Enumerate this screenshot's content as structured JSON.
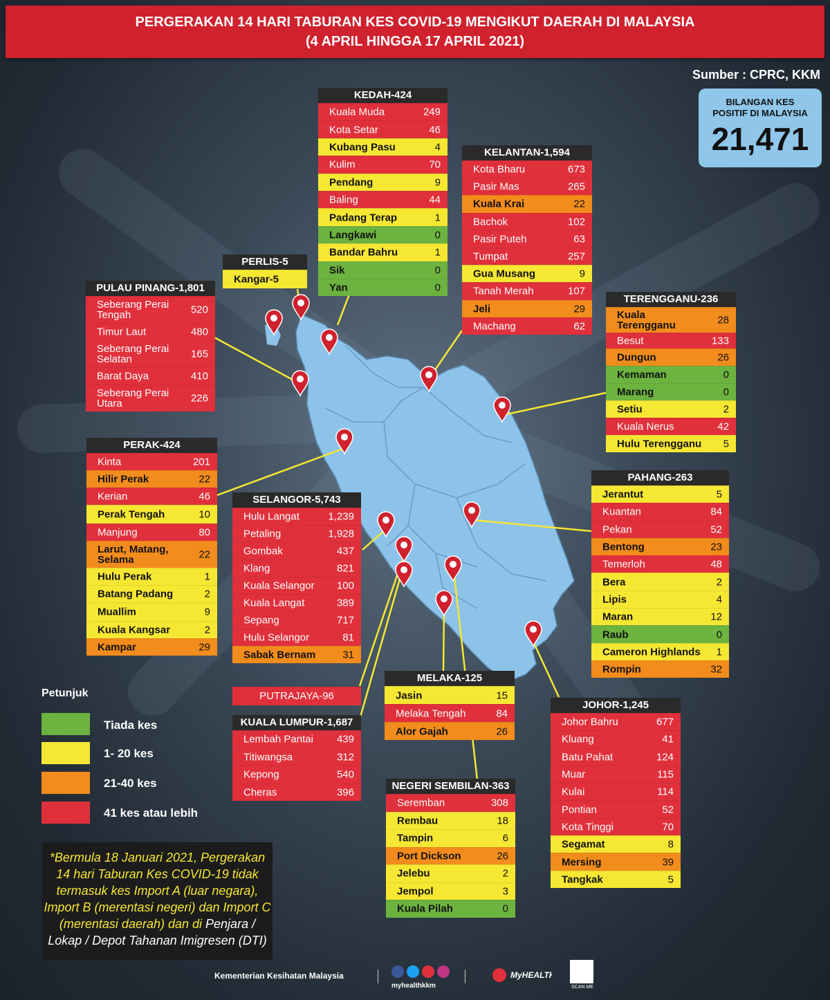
{
  "header": {
    "title_line1": "PERGERAKAN 14 HARI TABURAN KES COVID-19 MENGIKUT DAERAH DI MALAYSIA",
    "title_line2": "(4 APRIL HINGGA 17 APRIL 2021)"
  },
  "source": "Sumber : CPRC, KKM",
  "total": {
    "label_line1": "BILANGAN KES",
    "label_line2": "POSITIF DI MALAYSIA",
    "value": "21,471"
  },
  "colors": {
    "none": "#6db33f",
    "low": "#f6e733",
    "mid": "#f28c1c",
    "high": "#e0303c"
  },
  "kedah": {
    "title": "KEDAH-424",
    "rows": [
      {
        "n": "Kuala Muda",
        "v": "249"
      },
      {
        "n": "Kota Setar",
        "v": "46"
      },
      {
        "n": "Kubang Pasu",
        "v": "4"
      },
      {
        "n": "Kulim",
        "v": "70"
      },
      {
        "n": "Pendang",
        "v": "9"
      },
      {
        "n": "Baling",
        "v": "44"
      },
      {
        "n": "Padang Terap",
        "v": "1"
      },
      {
        "n": "Langkawi",
        "v": "0"
      },
      {
        "n": "Bandar Bahru",
        "v": "1"
      },
      {
        "n": "Sik",
        "v": "0"
      },
      {
        "n": "Yan",
        "v": "0"
      }
    ]
  },
  "kelantan": {
    "title": "KELANTAN-1,594",
    "rows": [
      {
        "n": "Kota Bharu",
        "v": "673"
      },
      {
        "n": "Pasir Mas",
        "v": "265"
      },
      {
        "n": "Kuala Krai",
        "v": "22"
      },
      {
        "n": "Bachok",
        "v": "102"
      },
      {
        "n": "Pasir Puteh",
        "v": "63"
      },
      {
        "n": "Tumpat",
        "v": "257"
      },
      {
        "n": "Gua Musang",
        "v": "9"
      },
      {
        "n": "Tanah Merah",
        "v": "107"
      },
      {
        "n": "Jeli",
        "v": "29"
      },
      {
        "n": "Machang",
        "v": "62"
      }
    ]
  },
  "perlis": {
    "title": "PERLIS-5",
    "rows": [
      {
        "n": "Kangar-5",
        "v": ""
      }
    ]
  },
  "pinang": {
    "title": "PULAU PINANG-1,801",
    "rows": [
      {
        "n": "Seberang Perai Tengah",
        "v": "520"
      },
      {
        "n": "Timur Laut",
        "v": "480"
      },
      {
        "n": "Seberang Perai Selatan",
        "v": "165"
      },
      {
        "n": "Barat Daya",
        "v": "410"
      },
      {
        "n": "Seberang Perai Utara",
        "v": "226"
      }
    ]
  },
  "terengganu": {
    "title": "TERENGGANU-236",
    "rows": [
      {
        "n": "Kuala Terengganu",
        "v": "28"
      },
      {
        "n": "Besut",
        "v": "133"
      },
      {
        "n": "Dungun",
        "v": "26"
      },
      {
        "n": "Kemaman",
        "v": "0"
      },
      {
        "n": "Marang",
        "v": "0"
      },
      {
        "n": "Setiu",
        "v": "2"
      },
      {
        "n": "Kuala Nerus",
        "v": "42"
      },
      {
        "n": "Hulu Terengganu",
        "v": "5"
      }
    ]
  },
  "perak": {
    "title": "PERAK-424",
    "rows": [
      {
        "n": "Kinta",
        "v": "201"
      },
      {
        "n": "Hilir Perak",
        "v": "22"
      },
      {
        "n": "Kerian",
        "v": "46"
      },
      {
        "n": "Perak Tengah",
        "v": "10"
      },
      {
        "n": "Manjung",
        "v": "80"
      },
      {
        "n": "Larut, Matang, Selama",
        "v": "22"
      },
      {
        "n": "Hulu Perak",
        "v": "1"
      },
      {
        "n": "Batang Padang",
        "v": "2"
      },
      {
        "n": "Muallim",
        "v": "9"
      },
      {
        "n": "Kuala Kangsar",
        "v": "2"
      },
      {
        "n": "Kampar",
        "v": "29"
      }
    ]
  },
  "selangor": {
    "title": "SELANGOR-5,743",
    "rows": [
      {
        "n": "Hulu Langat",
        "v": "1,239"
      },
      {
        "n": "Petaling",
        "v": "1,928"
      },
      {
        "n": "Gombak",
        "v": "437"
      },
      {
        "n": "Klang",
        "v": "821"
      },
      {
        "n": "Kuala Selangor",
        "v": "100"
      },
      {
        "n": "Kuala Langat",
        "v": "389"
      },
      {
        "n": "Sepang",
        "v": "717"
      },
      {
        "n": "Hulu Selangor",
        "v": "81"
      },
      {
        "n": "Sabak Bernam",
        "v": "31"
      }
    ]
  },
  "pahang": {
    "title": "PAHANG-263",
    "rows": [
      {
        "n": "Jerantut",
        "v": "5"
      },
      {
        "n": "Kuantan",
        "v": "84"
      },
      {
        "n": "Pekan",
        "v": "52"
      },
      {
        "n": "Bentong",
        "v": "23"
      },
      {
        "n": "Temerloh",
        "v": "48"
      },
      {
        "n": "Bera",
        "v": "2"
      },
      {
        "n": "Lipis",
        "v": "4"
      },
      {
        "n": "Maran",
        "v": "12"
      },
      {
        "n": "Raub",
        "v": "0"
      },
      {
        "n": "Cameron Highlands",
        "v": "1"
      },
      {
        "n": "Rompin",
        "v": "32"
      }
    ]
  },
  "putrajaya": {
    "title": "PUTRAJAYA-96"
  },
  "kl": {
    "title": "KUALA LUMPUR-1,687",
    "rows": [
      {
        "n": "Lembah Pantai",
        "v": "439"
      },
      {
        "n": "Titiwangsa",
        "v": "312"
      },
      {
        "n": "Kepong",
        "v": "540"
      },
      {
        "n": "Cheras",
        "v": "396"
      }
    ]
  },
  "melaka": {
    "title": "MELAKA-125",
    "rows": [
      {
        "n": "Jasin",
        "v": "15"
      },
      {
        "n": "Melaka Tengah",
        "v": "84"
      },
      {
        "n": "Alor Gajah",
        "v": "26"
      }
    ]
  },
  "johor": {
    "title": "JOHOR-1,245",
    "rows": [
      {
        "n": "Johor Bahru",
        "v": "677"
      },
      {
        "n": "Kluang",
        "v": "41"
      },
      {
        "n": "Batu Pahat",
        "v": "124"
      },
      {
        "n": "Muar",
        "v": "115"
      },
      {
        "n": "Kulai",
        "v": "114"
      },
      {
        "n": "Pontian",
        "v": "52"
      },
      {
        "n": "Kota Tinggi",
        "v": "70"
      },
      {
        "n": "Segamat",
        "v": "8"
      },
      {
        "n": "Mersing",
        "v": "39"
      },
      {
        "n": "Tangkak",
        "v": "5"
      }
    ]
  },
  "ns": {
    "title": "NEGERI SEMBILAN-363",
    "rows": [
      {
        "n": "Seremban",
        "v": "308"
      },
      {
        "n": "Rembau",
        "v": "18"
      },
      {
        "n": "Tampin",
        "v": "6"
      },
      {
        "n": "Port Dickson",
        "v": "26"
      },
      {
        "n": "Jelebu",
        "v": "2"
      },
      {
        "n": "Jempol",
        "v": "3"
      },
      {
        "n": "Kuala Pilah",
        "v": "0"
      }
    ]
  },
  "legend": {
    "title": "Petunjuk",
    "items": [
      "Tiada kes",
      "1- 20 kes",
      "21-40 kes",
      "41 kes atau lebih"
    ]
  },
  "note": {
    "text1": "*Bermula 18 Januari 2021, Pergerakan 14 hari Taburan Kes COVID-19 tidak termasuk kes Import A (luar negara), Import B (merentasi negeri) dan Import C (merentasi daerah) dan di ",
    "text2": "Penjara / Lokap / Depot Tahanan Imigresen (DTI)"
  },
  "footer": {
    "org": "Kementerian Kesihatan Malaysia",
    "handle": "myhealthkkm",
    "brand": "MyHEALTH",
    "scan": "SCAN ME"
  }
}
